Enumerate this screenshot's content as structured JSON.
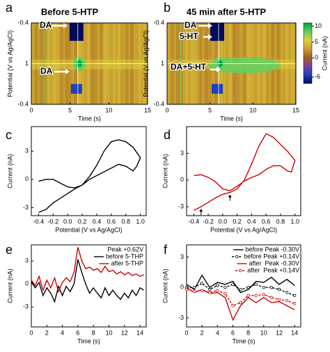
{
  "chart_data": [
    {
      "type": "heatmap",
      "label": "a",
      "title": "Before 5-HTP",
      "xlabel": "Time (s)",
      "ylabel": "Potential (V vs Ag/AgCl)",
      "xlim": [
        0,
        15
      ],
      "xticks": [
        0,
        5,
        10,
        15
      ],
      "ylabels": [
        "-0.4",
        "1",
        "-0.4"
      ],
      "colormap": [
        "#000a5a",
        "#2040c0",
        "#8040a0",
        "#a06020",
        "#c8a030",
        "#e0d040",
        "#60d060",
        "#00a040"
      ],
      "annotations": [
        "DA",
        "DA"
      ]
    },
    {
      "type": "heatmap",
      "label": "b",
      "title": "45 min after 5-HTP",
      "xlabel": "Time (s)",
      "ylabel": "Potential (V vs Ag/AgCl)",
      "xlim": [
        0,
        15
      ],
      "xticks": [
        0,
        5,
        10,
        15
      ],
      "ylabels": [
        "-0.4",
        "1",
        "-0.4"
      ],
      "colormap": [
        "#000a5a",
        "#2040c0",
        "#8040a0",
        "#a06020",
        "#c8a030",
        "#e0d040",
        "#60d060",
        "#00a040"
      ],
      "annotations": [
        "DA",
        "5-HT",
        "DA+5-HT"
      ],
      "colorbar": {
        "label": "Current (nA)",
        "ticks": [
          10,
          5,
          0,
          -6
        ],
        "lim": [
          -8,
          11
        ]
      }
    },
    {
      "type": "line",
      "label": "c",
      "xlabel": "Potential (V vs Ag/AgCl)",
      "ylabel": "Current (nA)",
      "xlim": [
        -0.5,
        1.08
      ],
      "xticks": [
        -0.4,
        -0.2,
        {
          "value": 0,
          "label": "0.0"
        },
        0.2,
        0.4,
        0.6,
        0.8,
        {
          "value": 1,
          "label": "1.0"
        }
      ],
      "ylim": [
        -3.85,
        5.6
      ],
      "yticks": [
        -3,
        0,
        3
      ],
      "x": [
        -0.4,
        -0.3,
        -0.2,
        -0.1,
        0,
        0.1,
        0.2,
        0.3,
        0.4,
        0.5,
        0.6,
        0.7,
        0.8,
        0.9,
        1.0,
        0.95,
        0.9,
        0.8,
        0.7,
        0.6,
        0.5,
        0.4,
        0.3,
        0.2,
        0.1,
        0,
        -0.1,
        -0.2,
        -0.3,
        -0.4
      ],
      "series": [
        {
          "color": "#000000",
          "values": [
            -3.5,
            -3.2,
            -2.5,
            -2,
            -1.5,
            -1,
            -0.6,
            0.3,
            1.5,
            3,
            4,
            4.2,
            4,
            3.4,
            2.3,
            1.4,
            0.9,
            1.4,
            1.6,
            1.2,
            0.8,
            0.4,
            0,
            -0.6,
            -0.9,
            -0.8,
            -0.4,
            0,
            0,
            -0.2
          ]
        }
      ]
    },
    {
      "type": "line",
      "label": "d",
      "xlabel": "Potential (V vs Ag/AgCl)",
      "ylabel": "Current (nA)",
      "xlim": [
        -0.5,
        1.08
      ],
      "xticks": [
        -0.4,
        -0.2,
        {
          "value": 0,
          "label": "0.0"
        },
        0.2,
        0.4,
        0.6,
        0.8,
        {
          "value": 1,
          "label": "1.0"
        }
      ],
      "ylim": [
        -4,
        6
      ],
      "yticks": [
        -3,
        0,
        3
      ],
      "x": [
        -0.4,
        -0.3,
        -0.2,
        -0.1,
        0,
        0.1,
        0.2,
        0.3,
        0.4,
        0.5,
        0.6,
        0.7,
        0.8,
        0.9,
        1.0,
        0.95,
        0.9,
        0.8,
        0.7,
        0.6,
        0.5,
        0.4,
        0.3,
        0.2,
        0.1,
        0,
        -0.1,
        -0.2,
        -0.3,
        -0.4
      ],
      "series": [
        {
          "color": "#cc0000",
          "values": [
            -3.4,
            -3,
            -2.5,
            -2,
            -1.6,
            -1.4,
            -1,
            0,
            1.8,
            3.8,
            5.2,
            4.8,
            4,
            3.2,
            2.2,
            0.9,
            1,
            1.6,
            1.6,
            1.2,
            0.6,
            0.3,
            -0.1,
            -0.7,
            -1.2,
            -1,
            -0.2,
            0.3,
            0.6,
            0.5
          ]
        }
      ]
    },
    {
      "type": "line",
      "label": "e",
      "xlabel": "Time (s)",
      "ylabel": "Current (nA)",
      "xlim": [
        0,
        14.8
      ],
      "xticks": [
        0,
        2,
        4,
        6,
        8,
        10,
        12,
        14
      ],
      "ylim": [
        -5.6,
        5.1
      ],
      "yticks": [
        -3,
        0,
        3
      ],
      "legend": "upper right",
      "legend_title": "Peak +0.62V",
      "x": [
        0,
        0.5,
        1,
        1.5,
        2,
        2.5,
        3,
        3.5,
        4,
        4.5,
        5,
        5.5,
        6,
        6.5,
        7,
        7.5,
        8,
        8.5,
        9,
        9.5,
        10,
        10.5,
        11,
        11.5,
        12,
        12.5,
        13,
        13.5,
        14,
        14.5
      ],
      "series": [
        {
          "name": "before 5-THP",
          "color": "#000000",
          "values": [
            0.3,
            -0.5,
            0.2,
            -1.5,
            -0.5,
            -1.2,
            -2.3,
            -0.3,
            -1.5,
            -0.3,
            -1,
            0,
            3.2,
            1.5,
            0,
            -1.2,
            -0.5,
            -1.2,
            -1.8,
            -0.5,
            -1.5,
            -0.8,
            -1.5,
            -2,
            -1.2,
            -1.8,
            -0.8,
            -1.5,
            -0.5,
            -0.8
          ]
        },
        {
          "name": "after 5-THP",
          "color": "#cc0000",
          "values": [
            0.5,
            -0.2,
            1,
            -0.8,
            0.5,
            -0.5,
            0.8,
            -1,
            0.2,
            0.8,
            0.3,
            1.5,
            4.8,
            3,
            2,
            2.2,
            1.8,
            2,
            1.5,
            2.3,
            1.6,
            1.8,
            1.3,
            1.6,
            1.2,
            1.5,
            1.1,
            1.3,
            1,
            1.2
          ]
        }
      ]
    },
    {
      "type": "line",
      "label": "f",
      "xlabel": "Time (s)",
      "ylabel": "Current (nA)",
      "xlim": [
        0,
        14.8
      ],
      "xticks": [
        0,
        2,
        4,
        6,
        8,
        10,
        12,
        14
      ],
      "ylim": [
        -3.9,
        4.2
      ],
      "yticks": [
        -3,
        0,
        3
      ],
      "legend": "upper right",
      "x": [
        0,
        1,
        2,
        3,
        4,
        5,
        6,
        7,
        8,
        9,
        10,
        11,
        12,
        13,
        14
      ],
      "series": [
        {
          "name": "before Peak -0.30V",
          "color": "#000000",
          "style": "solid",
          "values": [
            0.3,
            -0.2,
            1.2,
            0,
            0.5,
            0.3,
            0.6,
            -0.5,
            -0.2,
            0.6,
            0.5,
            1,
            0.3,
            0.8,
            0.2
          ]
        },
        {
          "name": "before Peak +0.14V",
          "color": "#000000",
          "style": "dashed",
          "marker": "circle-open",
          "values": [
            0,
            0,
            0.4,
            -0.2,
            0.2,
            0,
            0.3,
            -0.2,
            0,
            0.3,
            0,
            0,
            -0.2,
            -0.5,
            -0.8
          ]
        },
        {
          "name": "after  Peak -0.30V",
          "color": "#cc0000",
          "style": "solid",
          "values": [
            0,
            -0.5,
            -0.2,
            -0.6,
            -0.5,
            -1,
            -3.2,
            -1.8,
            -1,
            -1.5,
            -1,
            -1.5,
            -1.4,
            -1.8,
            -2.2
          ]
        },
        {
          "name": "after  Peak +0.14V",
          "color": "#cc0000",
          "style": "dashed",
          "marker": "circle-open",
          "values": [
            -0.2,
            -0.4,
            -0.3,
            -0.5,
            -0.3,
            -0.6,
            -1.8,
            -1.5,
            -0.8,
            -0.8,
            -0.7,
            -1,
            -1.2,
            -1.3,
            -1.6
          ]
        }
      ]
    }
  ]
}
